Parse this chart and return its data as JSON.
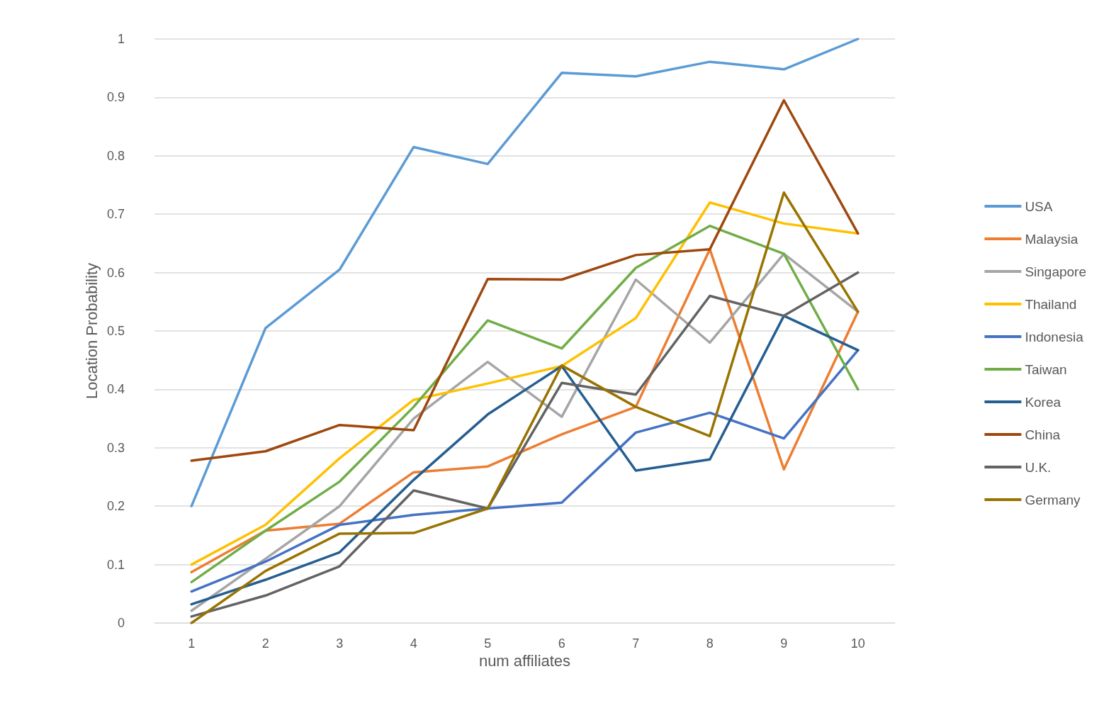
{
  "chart_data": {
    "type": "line",
    "xlabel": "num affiliates",
    "ylabel": "Location Probability",
    "categories": [
      "1",
      "2",
      "3",
      "4",
      "5",
      "6",
      "7",
      "8",
      "9",
      "10"
    ],
    "ylim": [
      0,
      1
    ],
    "yticks": [
      0,
      0.1,
      0.2,
      0.3,
      0.4,
      0.5,
      0.6,
      0.7,
      0.8,
      0.9,
      1
    ],
    "grid": "y",
    "legend": "right",
    "marker": "none",
    "line_style": "solid",
    "series": [
      {
        "name": "USA",
        "color": "#5b9bd5",
        "values": [
          0.2,
          0.505,
          0.605,
          0.815,
          0.786,
          0.942,
          0.936,
          0.961,
          0.948,
          1.0
        ]
      },
      {
        "name": "Malaysia",
        "color": "#ed7d31",
        "values": [
          0.087,
          0.158,
          0.17,
          0.258,
          0.268,
          0.323,
          0.37,
          0.64,
          0.263,
          0.533
        ]
      },
      {
        "name": "Singapore",
        "color": "#a5a5a5",
        "values": [
          0.021,
          0.11,
          0.2,
          0.35,
          0.447,
          0.353,
          0.588,
          0.48,
          0.632,
          0.533
        ]
      },
      {
        "name": "Thailand",
        "color": "#ffc000",
        "values": [
          0.1,
          0.168,
          0.282,
          0.382,
          0.41,
          0.44,
          0.522,
          0.72,
          0.684,
          0.667
        ]
      },
      {
        "name": "Indonesia",
        "color": "#4472c4",
        "values": [
          0.054,
          0.105,
          0.168,
          0.185,
          0.196,
          0.206,
          0.326,
          0.36,
          0.316,
          0.467
        ]
      },
      {
        "name": "Taiwan",
        "color": "#70ad47",
        "values": [
          0.07,
          0.158,
          0.242,
          0.37,
          0.518,
          0.47,
          0.608,
          0.68,
          0.632,
          0.4
        ]
      },
      {
        "name": "Korea",
        "color": "#255e91",
        "values": [
          0.032,
          0.074,
          0.121,
          0.245,
          0.357,
          0.44,
          0.261,
          0.28,
          0.526,
          0.467
        ]
      },
      {
        "name": "China",
        "color": "#9e480e",
        "values": [
          0.278,
          0.294,
          0.339,
          0.33,
          0.589,
          0.588,
          0.63,
          0.64,
          0.895,
          0.667
        ]
      },
      {
        "name": "U.K.",
        "color": "#636363",
        "values": [
          0.011,
          0.047,
          0.097,
          0.227,
          0.196,
          0.411,
          0.391,
          0.56,
          0.526,
          0.6
        ]
      },
      {
        "name": "Germany",
        "color": "#997300",
        "values": [
          0,
          0.089,
          0.153,
          0.154,
          0.196,
          0.441,
          0.37,
          0.32,
          0.737,
          0.533
        ]
      }
    ]
  }
}
